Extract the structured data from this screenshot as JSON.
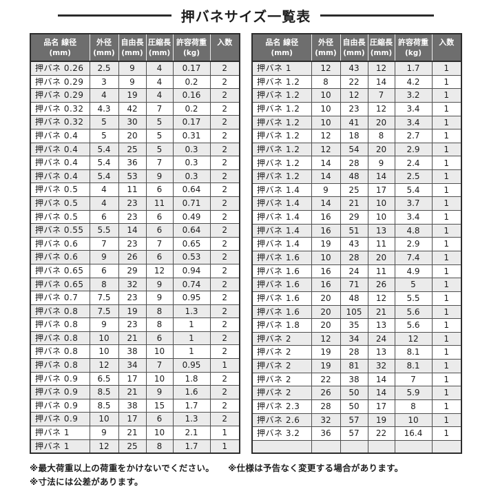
{
  "title": "押バネサイズ一覧表",
  "columns": [
    {
      "label": "品名 線径",
      "unit": "(mm)"
    },
    {
      "label": "外径",
      "unit": "(mm)"
    },
    {
      "label": "自由長",
      "unit": "(mm)"
    },
    {
      "label": "圧縮長",
      "unit": "(mm)"
    },
    {
      "label": "許容荷重",
      "unit": "(kg)"
    },
    {
      "label": "入数",
      "unit": ""
    }
  ],
  "tables": [
    {
      "rows": [
        [
          "押バネ 0.26",
          "2.5",
          "9",
          "4",
          "0.17",
          "2"
        ],
        [
          "押バネ 0.29",
          "3",
          "9",
          "4",
          "0.2",
          "2"
        ],
        [
          "押バネ 0.29",
          "4",
          "19",
          "4",
          "0.16",
          "2"
        ],
        [
          "押バネ 0.32",
          "4.3",
          "42",
          "7",
          "0.2",
          "2"
        ],
        [
          "押バネ 0.32",
          "5",
          "30",
          "5",
          "0.17",
          "2"
        ],
        [
          "押バネ 0.4",
          "5",
          "20",
          "5",
          "0.31",
          "2"
        ],
        [
          "押バネ 0.4",
          "5.4",
          "25",
          "5",
          "0.3",
          "2"
        ],
        [
          "押バネ 0.4",
          "5.4",
          "36",
          "7",
          "0.3",
          "2"
        ],
        [
          "押バネ 0.4",
          "5.4",
          "53",
          "9",
          "0.3",
          "2"
        ],
        [
          "押バネ 0.5",
          "4",
          "11",
          "6",
          "0.64",
          "2"
        ],
        [
          "押バネ 0.5",
          "4",
          "23",
          "11",
          "0.71",
          "2"
        ],
        [
          "押バネ 0.5",
          "6",
          "23",
          "6",
          "0.49",
          "2"
        ],
        [
          "押バネ 0.55",
          "5.5",
          "14",
          "6",
          "0.64",
          "2"
        ],
        [
          "押バネ 0.6",
          "7",
          "23",
          "7",
          "0.65",
          "2"
        ],
        [
          "押バネ 0.6",
          "9",
          "26",
          "6",
          "0.53",
          "2"
        ],
        [
          "押バネ 0.65",
          "6",
          "29",
          "12",
          "0.94",
          "2"
        ],
        [
          "押バネ 0.65",
          "8",
          "32",
          "9",
          "0.74",
          "2"
        ],
        [
          "押バネ 0.7",
          "7.5",
          "23",
          "9",
          "0.95",
          "2"
        ],
        [
          "押バネ 0.8",
          "7.5",
          "19",
          "8",
          "1.3",
          "2"
        ],
        [
          "押バネ 0.8",
          "9",
          "23",
          "8",
          "1",
          "2"
        ],
        [
          "押バネ 0.8",
          "10",
          "21",
          "6",
          "1",
          "2"
        ],
        [
          "押バネ 0.8",
          "10",
          "38",
          "10",
          "1",
          "2"
        ],
        [
          "押バネ 0.8",
          "12",
          "34",
          "7",
          "0.95",
          "1"
        ],
        [
          "押バネ 0.9",
          "6.5",
          "17",
          "10",
          "1.8",
          "2"
        ],
        [
          "押バネ 0.9",
          "8.5",
          "21",
          "9",
          "1.6",
          "2"
        ],
        [
          "押バネ 0.9",
          "8.5",
          "38",
          "15",
          "1.7",
          "2"
        ],
        [
          "押バネ 0.9",
          "10",
          "17",
          "6",
          "1.3",
          "2"
        ],
        [
          "押バネ 1",
          "9",
          "21",
          "10",
          "2.1",
          "1"
        ],
        [
          "押バネ 1",
          "12",
          "25",
          "8",
          "1.7",
          "1"
        ]
      ]
    },
    {
      "rows": [
        [
          "押バネ 1",
          "12",
          "43",
          "12",
          "1.7",
          "1"
        ],
        [
          "押バネ 1.2",
          "8",
          "22",
          "14",
          "4.2",
          "1"
        ],
        [
          "押バネ 1.2",
          "10",
          "12",
          "7",
          "3.2",
          "1"
        ],
        [
          "押バネ 1.2",
          "10",
          "23",
          "12",
          "3.4",
          "1"
        ],
        [
          "押バネ 1.2",
          "10",
          "41",
          "20",
          "3.4",
          "1"
        ],
        [
          "押バネ 1.2",
          "12",
          "18",
          "8",
          "2.7",
          "1"
        ],
        [
          "押バネ 1.2",
          "12",
          "54",
          "20",
          "2.9",
          "1"
        ],
        [
          "押バネ 1.2",
          "14",
          "28",
          "9",
          "2.4",
          "1"
        ],
        [
          "押バネ 1.2",
          "14",
          "48",
          "14",
          "2.5",
          "1"
        ],
        [
          "押バネ 1.4",
          "9",
          "25",
          "17",
          "5.4",
          "1"
        ],
        [
          "押バネ 1.4",
          "14",
          "21",
          "10",
          "3.7",
          "1"
        ],
        [
          "押バネ 1.4",
          "16",
          "29",
          "10",
          "3.4",
          "1"
        ],
        [
          "押バネ 1.4",
          "16",
          "51",
          "13",
          "4.8",
          "1"
        ],
        [
          "押バネ 1.4",
          "19",
          "43",
          "11",
          "2.9",
          "1"
        ],
        [
          "押バネ 1.6",
          "10",
          "28",
          "20",
          "7.4",
          "1"
        ],
        [
          "押バネ 1.6",
          "16",
          "24",
          "11",
          "4.9",
          "1"
        ],
        [
          "押バネ 1.6",
          "16",
          "71",
          "26",
          "5",
          "1"
        ],
        [
          "押バネ 1.6",
          "20",
          "48",
          "12",
          "5.5",
          "1"
        ],
        [
          "押バネ 1.6",
          "20",
          "105",
          "21",
          "5.6",
          "1"
        ],
        [
          "押バネ 1.8",
          "20",
          "35",
          "13",
          "5.6",
          "1"
        ],
        [
          "押バネ 2",
          "12",
          "34",
          "24",
          "12",
          "1"
        ],
        [
          "押バネ 2",
          "19",
          "28",
          "13",
          "8.1",
          "1"
        ],
        [
          "押バネ 2",
          "19",
          "81",
          "32",
          "8.1",
          "1"
        ],
        [
          "押バネ 2",
          "22",
          "38",
          "14",
          "7",
          "1"
        ],
        [
          "押バネ 2",
          "26",
          "50",
          "14",
          "5.9",
          "1"
        ],
        [
          "押バネ 2.3",
          "28",
          "50",
          "17",
          "8",
          "1"
        ],
        [
          "押バネ 2.6",
          "32",
          "57",
          "19",
          "10",
          "1"
        ],
        [
          "押バネ 3.2",
          "36",
          "57",
          "22",
          "16.4",
          "1"
        ],
        [
          "",
          "",
          "",
          "",
          "",
          ""
        ]
      ]
    }
  ],
  "notes": [
    "※最大荷重以上の荷重をかけないでください。",
    "※仕様は予告なく変更する場合があります。",
    "※寸法には公差があります。"
  ],
  "colors": {
    "header_bg": "#6e6e6e",
    "stripe": "#ebebeb",
    "border_dark": "#2b2b2b",
    "rule": "#2a2a2a"
  }
}
